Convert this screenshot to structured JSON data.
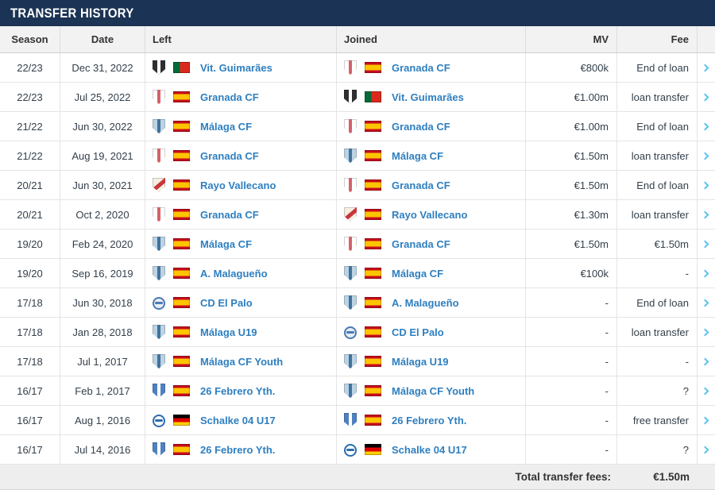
{
  "panel": {
    "title": "Transfer history"
  },
  "colors": {
    "navy": "#1b3354",
    "link": "#2e7fc0",
    "chevron": "#5bc3ef",
    "header_bg": "#f2f2f2",
    "footer_bg": "#eeeeee",
    "row_border": "#e4e4e4"
  },
  "table": {
    "headers": {
      "season": "Season",
      "date": "Date",
      "left": "Left",
      "joined": "Joined",
      "mv": "MV",
      "fee": "Fee"
    },
    "rows": [
      {
        "season": "22/23",
        "date": "Dec 31, 2022",
        "left": {
          "club": "Vit. Guimarães",
          "flag": "pt",
          "crest": "vitoria"
        },
        "joined": {
          "club": "Granada CF",
          "flag": "es",
          "crest": "granada"
        },
        "mv": "€800k",
        "fee": "End of loan"
      },
      {
        "season": "22/23",
        "date": "Jul 25, 2022",
        "left": {
          "club": "Granada CF",
          "flag": "es",
          "crest": "granada"
        },
        "joined": {
          "club": "Vit. Guimarães",
          "flag": "pt",
          "crest": "vitoria"
        },
        "mv": "€1.00m",
        "fee": "loan transfer"
      },
      {
        "season": "21/22",
        "date": "Jun 30, 2022",
        "left": {
          "club": "Málaga CF",
          "flag": "es",
          "crest": "malaga"
        },
        "joined": {
          "club": "Granada CF",
          "flag": "es",
          "crest": "granada"
        },
        "mv": "€1.00m",
        "fee": "End of loan"
      },
      {
        "season": "21/22",
        "date": "Aug 19, 2021",
        "left": {
          "club": "Granada CF",
          "flag": "es",
          "crest": "granada"
        },
        "joined": {
          "club": "Málaga CF",
          "flag": "es",
          "crest": "malaga"
        },
        "mv": "€1.50m",
        "fee": "loan transfer"
      },
      {
        "season": "20/21",
        "date": "Jun 30, 2021",
        "left": {
          "club": "Rayo Vallecano",
          "flag": "es",
          "crest": "rayo"
        },
        "joined": {
          "club": "Granada CF",
          "flag": "es",
          "crest": "granada"
        },
        "mv": "€1.50m",
        "fee": "End of loan"
      },
      {
        "season": "20/21",
        "date": "Oct 2, 2020",
        "left": {
          "club": "Granada CF",
          "flag": "es",
          "crest": "granada"
        },
        "joined": {
          "club": "Rayo Vallecano",
          "flag": "es",
          "crest": "rayo"
        },
        "mv": "€1.30m",
        "fee": "loan transfer"
      },
      {
        "season": "19/20",
        "date": "Feb 24, 2020",
        "left": {
          "club": "Málaga CF",
          "flag": "es",
          "crest": "malaga"
        },
        "joined": {
          "club": "Granada CF",
          "flag": "es",
          "crest": "granada"
        },
        "mv": "€1.50m",
        "fee": "€1.50m"
      },
      {
        "season": "19/20",
        "date": "Sep 16, 2019",
        "left": {
          "club": "A. Malagueño",
          "flag": "es",
          "crest": "malaga"
        },
        "joined": {
          "club": "Málaga CF",
          "flag": "es",
          "crest": "malaga"
        },
        "mv": "€100k",
        "fee": "-"
      },
      {
        "season": "17/18",
        "date": "Jun 30, 2018",
        "left": {
          "club": "CD El Palo",
          "flag": "es",
          "crest": "elpalo"
        },
        "joined": {
          "club": "A. Malagueño",
          "flag": "es",
          "crest": "malaga"
        },
        "mv": "-",
        "fee": "End of loan"
      },
      {
        "season": "17/18",
        "date": "Jan 28, 2018",
        "left": {
          "club": "Málaga U19",
          "flag": "es",
          "crest": "malaga"
        },
        "joined": {
          "club": "CD El Palo",
          "flag": "es",
          "crest": "elpalo"
        },
        "mv": "-",
        "fee": "loan transfer"
      },
      {
        "season": "17/18",
        "date": "Jul 1, 2017",
        "left": {
          "club": "Málaga CF Youth",
          "flag": "es",
          "crest": "malaga"
        },
        "joined": {
          "club": "Málaga U19",
          "flag": "es",
          "crest": "malaga"
        },
        "mv": "-",
        "fee": "-"
      },
      {
        "season": "16/17",
        "date": "Feb 1, 2017",
        "left": {
          "club": "26 Febrero Yth.",
          "flag": "es",
          "crest": "febrero"
        },
        "joined": {
          "club": "Málaga CF Youth",
          "flag": "es",
          "crest": "malaga"
        },
        "mv": "-",
        "fee": "?"
      },
      {
        "season": "16/17",
        "date": "Aug 1, 2016",
        "left": {
          "club": "Schalke 04 U17",
          "flag": "de",
          "crest": "schalke"
        },
        "joined": {
          "club": "26 Febrero Yth.",
          "flag": "es",
          "crest": "febrero"
        },
        "mv": "-",
        "fee": "free transfer"
      },
      {
        "season": "16/17",
        "date": "Jul 14, 2016",
        "left": {
          "club": "26 Febrero Yth.",
          "flag": "es",
          "crest": "febrero"
        },
        "joined": {
          "club": "Schalke 04 U17",
          "flag": "de",
          "crest": "schalke"
        },
        "mv": "-",
        "fee": "?"
      }
    ],
    "footer": {
      "label": "Total transfer fees:",
      "value": "€1.50m"
    }
  },
  "crests": {
    "vitoria": {
      "shape": "shield",
      "primary": "#2f2f33",
      "secondary": "#ffffff"
    },
    "granada": {
      "shape": "shield",
      "primary": "#ffffff",
      "secondary": "#d4626b"
    },
    "malaga": {
      "shape": "shield",
      "primary": "#bdd3e4",
      "secondary": "#3f739f"
    },
    "rayo": {
      "shape": "shield-sash",
      "primary": "#f6f0e1",
      "secondary": "#c8373e"
    },
    "elpalo": {
      "shape": "circle",
      "primary": "#e8edf3",
      "secondary": "#4a7ab5"
    },
    "febrero": {
      "shape": "shield",
      "primary": "#4f81c0",
      "secondary": "#ffffff"
    },
    "schalke": {
      "shape": "circle",
      "primary": "#ffffff",
      "secondary": "#2b6bb1"
    }
  },
  "flags": {
    "es": {
      "layout": "horizontal-121",
      "colors": [
        "#c60b1e",
        "#ffc400",
        "#c60b1e"
      ]
    },
    "pt": {
      "layout": "vertical-23",
      "colors": [
        "#046a38",
        "#da291c"
      ]
    },
    "de": {
      "layout": "horizontal",
      "colors": [
        "#000000",
        "#dd0000",
        "#ffce00"
      ]
    }
  }
}
